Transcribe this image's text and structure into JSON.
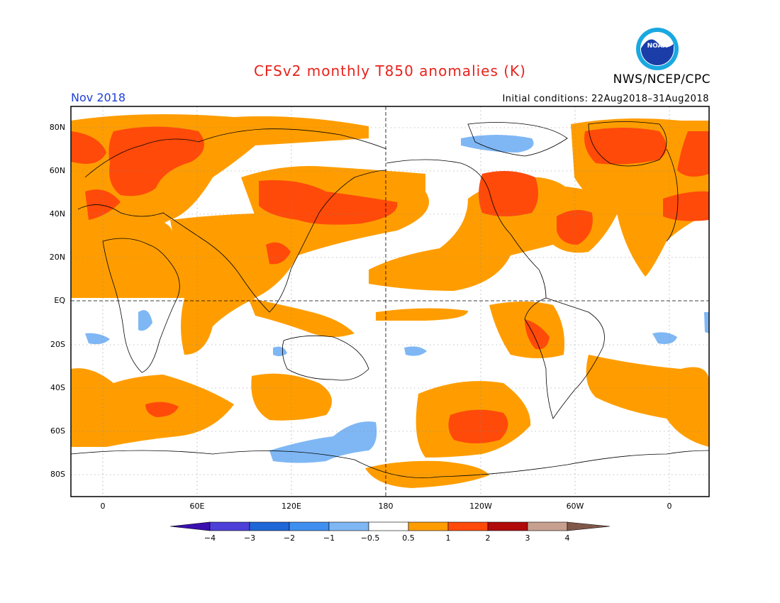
{
  "header": {
    "title": "CFSv2 monthly T850 anomalies (K)",
    "org": "NWS/NCEP/CPC",
    "month": "Nov 2018",
    "initial_conditions": "Initial conditions: 22Aug2018–31Aug2018",
    "logo_text": "NOAA"
  },
  "axes": {
    "lat_ticks": [
      "80N",
      "60N",
      "40N",
      "20N",
      "EQ",
      "20S",
      "40S",
      "60S",
      "80S"
    ],
    "lon_ticks": [
      "0",
      "60E",
      "120E",
      "180",
      "120W",
      "60W",
      "0"
    ]
  },
  "colorbar": {
    "labels": [
      "−4",
      "−3",
      "−2",
      "−1",
      "−0.5",
      "0.5",
      "1",
      "2",
      "3",
      "4"
    ],
    "colors": [
      "#3a0fb0",
      "#4d3fd8",
      "#1f66d8",
      "#3f8ff0",
      "#7fb7f4",
      "#ffffff",
      "#ff9d00",
      "#ff4a0a",
      "#b00a0a",
      "#c8a08f",
      "#80584a"
    ]
  },
  "colors": {
    "warm": "#ff9d00",
    "hot": "#ff4a0a",
    "cool": "#7fb7f4",
    "title": "#e8221b",
    "month": "#1f3fd8"
  }
}
